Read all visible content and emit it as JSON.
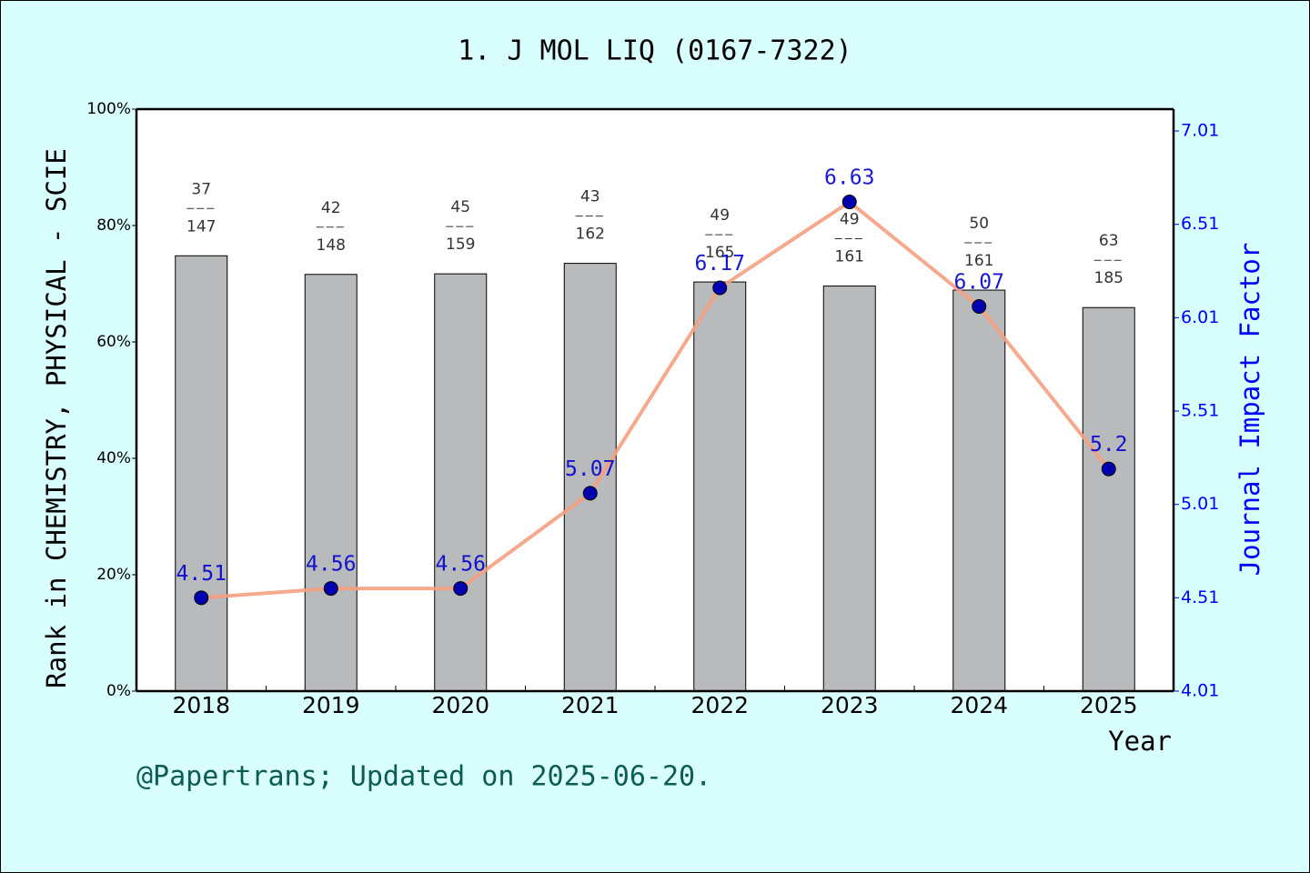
{
  "chart_data": {
    "type": "bar-line",
    "title": "1. J MOL LIQ (0167-7322)",
    "y_label": "Rank in CHEMISTRY, PHYSICAL - SCIE",
    "y2_label": "Journal Impact Factor",
    "x_label": "Year",
    "footer": "@Papertrans; Updated on 2025-06-20.",
    "categories": [
      "2018",
      "2019",
      "2020",
      "2021",
      "2022",
      "2023",
      "2024",
      "2025"
    ],
    "series": [
      {
        "type": "bar",
        "color": "#b9babc",
        "values": [
          74.8,
          71.6,
          71.7,
          73.5,
          70.3,
          69.6,
          68.9,
          65.9
        ],
        "ranks": [
          37,
          42,
          45,
          43,
          49,
          49,
          50,
          63
        ],
        "totals": [
          147,
          148,
          159,
          162,
          165,
          161,
          161,
          185
        ]
      },
      {
        "type": "line",
        "axis": "y2",
        "color": "#f5a080",
        "marker_color": "#0000b0",
        "label_color": "#0000d0",
        "values": [
          4.51,
          4.56,
          4.56,
          5.07,
          6.17,
          6.63,
          6.07,
          5.2
        ]
      }
    ],
    "ylim": [
      0,
      100
    ],
    "yticks": [
      {
        "value": 0,
        "label": "0%"
      },
      {
        "value": 20,
        "label": "20%"
      },
      {
        "value": 40,
        "label": "40%"
      },
      {
        "value": 60,
        "label": "60%"
      },
      {
        "value": 80,
        "label": "80%"
      },
      {
        "value": 100,
        "label": "100%"
      }
    ],
    "y2lim": [
      4.01,
      7.127
    ],
    "y2ticks": [
      4.01,
      4.51,
      5.01,
      5.51,
      6.01,
      6.51,
      7.01
    ],
    "y2_color": "#0000ff",
    "footer_color": "#0b5c52"
  }
}
